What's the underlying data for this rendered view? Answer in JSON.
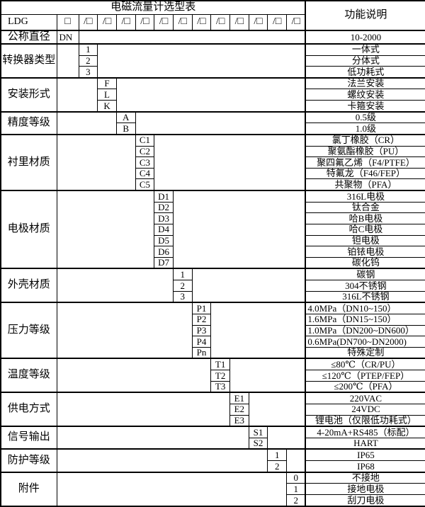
{
  "colors": {
    "background": "#ffffff",
    "text": "#000000",
    "border": "#000000"
  },
  "title": "电磁流量计选型表",
  "right_header": "功能说明",
  "model_row": {
    "prefix": "LDG",
    "first_box": "□",
    "slot_box": "/□",
    "slot_count": 12
  },
  "groups": [
    {
      "label": "公称直径",
      "code_col": 1,
      "items": [
        {
          "code": "DN",
          "desc": "10-2000"
        }
      ]
    },
    {
      "label": "转换器类型",
      "code_col": 2,
      "items": [
        {
          "code": "1",
          "desc": "一体式"
        },
        {
          "code": "2",
          "desc": "分体式"
        },
        {
          "code": "3",
          "desc": "低功耗式"
        }
      ]
    },
    {
      "label": "安装形式",
      "code_col": 3,
      "items": [
        {
          "code": "F",
          "desc": "法兰安装"
        },
        {
          "code": "L",
          "desc": "螺纹安装"
        },
        {
          "code": "K",
          "desc": "卡箍安装"
        }
      ]
    },
    {
      "label": "精度等级",
      "code_col": 4,
      "items": [
        {
          "code": "A",
          "desc": "0.5级"
        },
        {
          "code": "B",
          "desc": "1.0级"
        }
      ]
    },
    {
      "label": "衬里材质",
      "code_col": 5,
      "items": [
        {
          "code": "C1",
          "desc": "氯丁橡胶（CR）"
        },
        {
          "code": "C2",
          "desc": "聚氨酯橡胶（PU）"
        },
        {
          "code": "C3",
          "desc": "聚四氟乙烯（F4/PTFE）"
        },
        {
          "code": "C4",
          "desc": "特氟龙（F46/FEP）"
        },
        {
          "code": "C5",
          "desc": "共聚物（PFA）"
        }
      ]
    },
    {
      "label": "电极材质",
      "code_col": 6,
      "items": [
        {
          "code": "D1",
          "desc": "316L电极"
        },
        {
          "code": "D2",
          "desc": "钛合金"
        },
        {
          "code": "D3",
          "desc": "哈B电极"
        },
        {
          "code": "D4",
          "desc": "哈C电极"
        },
        {
          "code": "D5",
          "desc": "钽电极"
        },
        {
          "code": "D6",
          "desc": "铂铱电极"
        },
        {
          "code": "D7",
          "desc": "碳化钨"
        }
      ]
    },
    {
      "label": "外壳材质",
      "code_col": 7,
      "items": [
        {
          "code": "1",
          "desc": "碳钢"
        },
        {
          "code": "2",
          "desc": "304不锈钢"
        },
        {
          "code": "3",
          "desc": "316L不锈钢"
        }
      ]
    },
    {
      "label": "压力等级",
      "code_col": 8,
      "items": [
        {
          "code": "P1",
          "desc": "4.0MPa（DN10~150）",
          "align": "left"
        },
        {
          "code": "P2",
          "desc": "1.6MPa（DN15~150）",
          "align": "left"
        },
        {
          "code": "P3",
          "desc": "1.0MPa（DN200~DN600）",
          "align": "left"
        },
        {
          "code": "P4",
          "desc": "0.6MPa(DN700~DN2000)",
          "align": "left"
        },
        {
          "code": "Pn",
          "desc": "特殊定制"
        }
      ]
    },
    {
      "label": "温度等级",
      "code_col": 9,
      "items": [
        {
          "code": "T1",
          "desc": "≤80℃（CR/PU）"
        },
        {
          "code": "T2",
          "desc": "≤120℃（PTEP/FEP）"
        },
        {
          "code": "T3",
          "desc": "≤200℃（PFA）"
        }
      ]
    },
    {
      "label": "供电方式",
      "code_col": 10,
      "items": [
        {
          "code": "E1",
          "desc": "220VAC"
        },
        {
          "code": "E2",
          "desc": "24VDC"
        },
        {
          "code": "E3",
          "desc": "锂电池（仅限低功耗式）"
        }
      ]
    },
    {
      "label": "信号输出",
      "code_col": 11,
      "items": [
        {
          "code": "S1",
          "desc": "4-20mA+RS485（标配）"
        },
        {
          "code": "S2",
          "desc": "HART"
        }
      ]
    },
    {
      "label": "防护等级",
      "code_col": 12,
      "items": [
        {
          "code": "1",
          "desc": "IP65"
        },
        {
          "code": "2",
          "desc": "IP68"
        }
      ]
    },
    {
      "label": "附件",
      "code_col": 13,
      "items": [
        {
          "code": "0",
          "desc": "不接地"
        },
        {
          "code": "1",
          "desc": "接地电极"
        },
        {
          "code": "2",
          "desc": "刮刀电极"
        }
      ]
    }
  ]
}
